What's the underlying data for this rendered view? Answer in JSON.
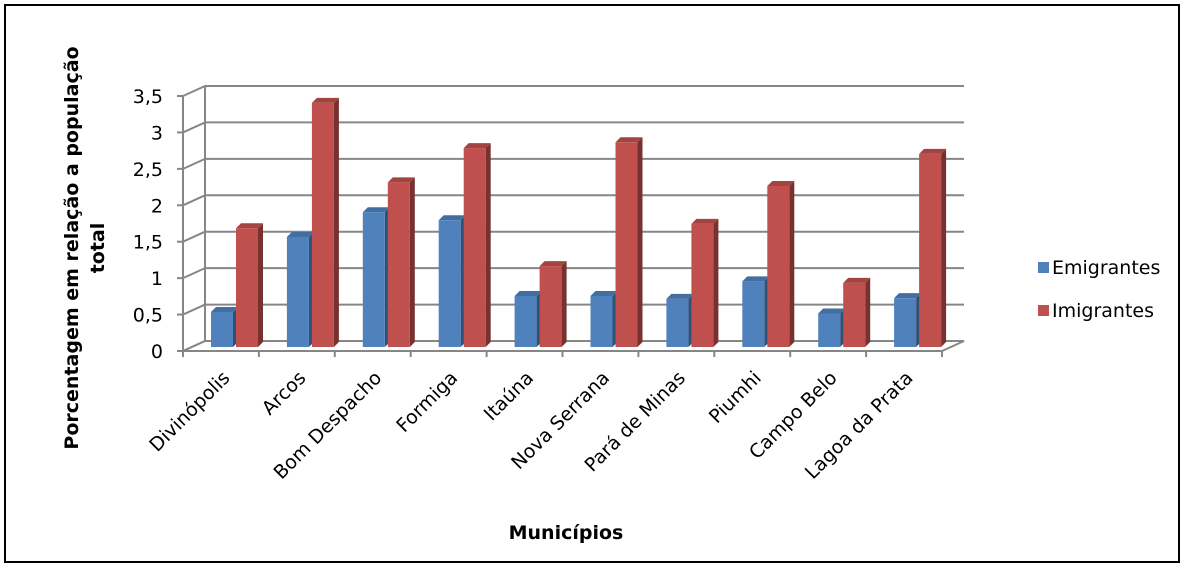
{
  "chart_data": {
    "type": "bar",
    "title": "",
    "xlabel": "Municípios",
    "ylabel_line1": "Porcentagem em relação a população",
    "ylabel_line2": "total",
    "ylim": [
      0,
      3.5
    ],
    "yticks": [
      "0",
      "0,5",
      "1",
      "1,5",
      "2",
      "2,5",
      "3",
      "3,5"
    ],
    "ytick_values": [
      0,
      0.5,
      1,
      1.5,
      2,
      2.5,
      3,
      3.5
    ],
    "categories": [
      "Divinópolis",
      "Arcos",
      "Bom Despacho",
      "Formiga",
      "Itaúna",
      "Nova Serrana",
      "Pará de Minas",
      "Piumhi",
      "Campo Belo",
      "Lagoa da Prata"
    ],
    "series": [
      {
        "name": "Emigrantes",
        "color": "#4F81BD",
        "values": [
          0.48,
          1.51,
          1.85,
          1.74,
          0.7,
          0.7,
          0.66,
          0.9,
          0.46,
          0.67
        ]
      },
      {
        "name": "Imigrantes",
        "color": "#C0504D",
        "values": [
          1.63,
          3.35,
          2.26,
          2.73,
          1.11,
          2.81,
          1.69,
          2.21,
          0.88,
          2.65
        ]
      }
    ],
    "grid": true,
    "legend_position": "right"
  }
}
